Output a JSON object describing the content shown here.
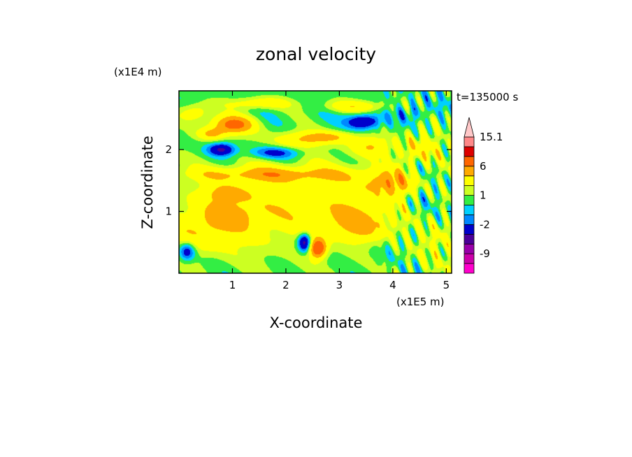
{
  "chart_data": {
    "type": "heatmap",
    "title": "zonal velocity",
    "xlabel": "X-coordinate",
    "ylabel": "Z-coordinate",
    "x_unit": "(x1E5 m)",
    "y_unit": "(x1E4 m)",
    "timestamp": "t=135000 s",
    "xlim": [
      0,
      5.1
    ],
    "ylim": [
      0,
      2.95
    ],
    "x_ticks": [
      {
        "value": 1,
        "label": "1"
      },
      {
        "value": 2,
        "label": "2"
      },
      {
        "value": 3,
        "label": "3"
      },
      {
        "value": 4,
        "label": "4"
      },
      {
        "value": 5,
        "label": "5"
      }
    ],
    "y_ticks": [
      {
        "value": 1,
        "label": "1"
      },
      {
        "value": 2,
        "label": "2"
      }
    ],
    "colorbar": {
      "levels": [
        -15,
        -12,
        -9,
        -6,
        -4,
        -2,
        -1,
        0,
        1,
        2,
        4,
        6,
        9,
        12,
        15.1
      ],
      "colors": [
        "#ff00cc",
        "#cc00aa",
        "#9900aa",
        "#4b0099",
        "#0000cc",
        "#0088ff",
        "#00d0ff",
        "#33ee44",
        "#ccff22",
        "#ffff00",
        "#ffaa00",
        "#ff6600",
        "#dd0000",
        "#ff8888",
        "#ffc8c8"
      ],
      "tick_labels": [
        {
          "level_index": 14,
          "label": "15.1"
        },
        {
          "level_index": 11,
          "label": "6"
        },
        {
          "level_index": 8,
          "label": "1"
        },
        {
          "level_index": 5,
          "label": "-2"
        },
        {
          "level_index": 2,
          "label": "-9"
        }
      ],
      "extend": "max"
    },
    "features": [
      {
        "x": 2.5,
        "z": 1.0,
        "sx": 2.6,
        "sz": 0.85,
        "v": 3.0
      },
      {
        "x": 0.4,
        "z": 0.7,
        "sx": 0.6,
        "sz": 0.35,
        "v": 2.5
      },
      {
        "x": 1.1,
        "z": 0.95,
        "sx": 0.6,
        "sz": 0.25,
        "v": 2.0
      },
      {
        "x": 3.3,
        "z": 0.75,
        "sx": 0.7,
        "sz": 0.3,
        "v": 2.5
      },
      {
        "x": 2.7,
        "z": 0.5,
        "sx": 0.8,
        "sz": 0.35,
        "v": -1.4
      },
      {
        "x": 3.8,
        "z": 0.4,
        "sx": 0.35,
        "sz": 0.3,
        "v": -1.5
      },
      {
        "x": 4.5,
        "z": 1.2,
        "sx": 0.35,
        "sz": 0.6,
        "v": -2.0
      },
      {
        "x": 4.8,
        "z": 0.4,
        "sx": 0.5,
        "sz": 0.4,
        "v": 1.0
      },
      {
        "x": 0.15,
        "z": 0.35,
        "sx": 0.15,
        "sz": 0.15,
        "v": -4.5
      },
      {
        "x": 2.35,
        "z": 0.5,
        "sx": 0.12,
        "sz": 0.15,
        "v": -6.0
      },
      {
        "x": 2.6,
        "z": 0.4,
        "sx": 0.15,
        "sz": 0.15,
        "v": 8.0
      },
      {
        "x": 1.7,
        "z": 1.6,
        "sx": 1.6,
        "sz": 0.12,
        "v": 3.5
      },
      {
        "x": 4.0,
        "z": 1.45,
        "sx": 0.6,
        "sz": 0.2,
        "v": 3.5
      },
      {
        "x": 1.8,
        "z": 1.95,
        "sx": 0.5,
        "sz": 0.1,
        "v": -3.5
      },
      {
        "x": 0.8,
        "z": 2.0,
        "sx": 0.25,
        "sz": 0.1,
        "v": -5.0
      },
      {
        "x": 1.0,
        "z": 2.4,
        "sx": 0.4,
        "sz": 0.15,
        "v": 6.5
      },
      {
        "x": 0.6,
        "z": 2.25,
        "sx": 0.25,
        "sz": 0.1,
        "v": 3.5
      },
      {
        "x": 3.45,
        "z": 2.45,
        "sx": 0.3,
        "sz": 0.12,
        "v": -5.0
      },
      {
        "x": 2.8,
        "z": 2.2,
        "sx": 0.5,
        "sz": 0.1,
        "v": 3.5
      },
      {
        "x": 3.6,
        "z": 2.05,
        "sx": 0.4,
        "sz": 0.15,
        "v": 3.0
      },
      {
        "x": 1.5,
        "z": 2.75,
        "sx": 0.6,
        "sz": 0.1,
        "v": 3.0
      },
      {
        "x": 3.3,
        "z": 2.7,
        "sx": 0.6,
        "sz": 0.1,
        "v": 3.0
      },
      {
        "x": 0.9,
        "z": 1.3,
        "sx": 0.5,
        "sz": 0.15,
        "v": 2.5
      },
      {
        "x": 2.2,
        "z": 2.15,
        "sx": 0.5,
        "sz": 0.15,
        "v": 2.5
      },
      {
        "x": 4.5,
        "z": 2.0,
        "sx": 0.4,
        "sz": 0.3,
        "v": 3.0
      },
      {
        "x": 4.4,
        "z": 2.6,
        "sx": 0.3,
        "sz": 0.15,
        "v": -1.5
      },
      {
        "x": 0.3,
        "z": 2.6,
        "sx": 0.3,
        "sz": 0.15,
        "v": 3.0
      }
    ]
  }
}
